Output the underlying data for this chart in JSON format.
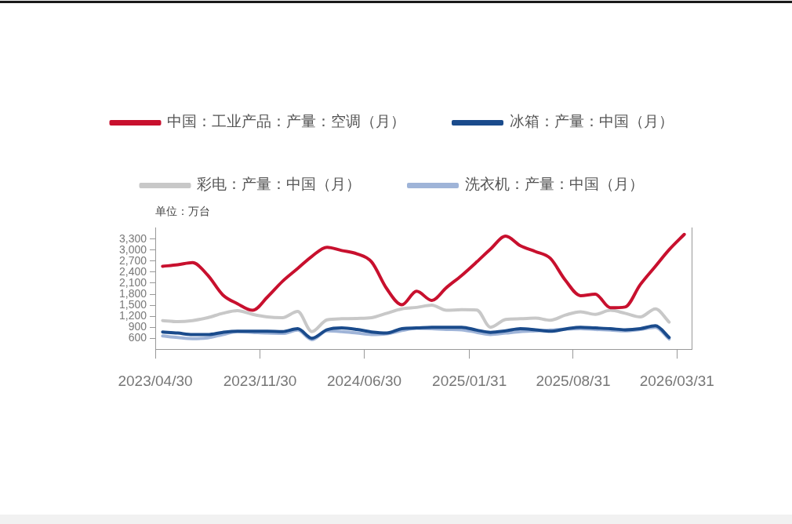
{
  "chart_data": {
    "type": "line",
    "ylabel": "单位：万台",
    "legend": "top",
    "x": [
      "2023-05-15",
      "2023-06-15",
      "2023-07-15",
      "2023-08-15",
      "2023-09-15",
      "2023-10-15",
      "2023-11-15",
      "2023-12-15",
      "2024-01-15",
      "2024-02-15",
      "2024-03-15",
      "2024-04-15",
      "2024-05-15",
      "2024-06-15",
      "2024-07-15",
      "2024-08-15",
      "2024-09-15",
      "2024-10-15",
      "2024-11-15",
      "2024-12-15",
      "2025-01-15",
      "2025-02-15",
      "2025-03-15",
      "2025-04-15",
      "2025-05-15",
      "2025-06-15",
      "2025-07-15",
      "2025-08-15",
      "2025-09-15",
      "2025-10-15",
      "2025-11-15",
      "2025-12-15",
      "2026-01-15",
      "2026-02-15",
      "2026-03-15",
      "2026-04-15"
    ],
    "series": [
      {
        "name": "中国：工业产品：产量：空调（月）",
        "color": "#c8102e",
        "values": [
          2560,
          2600,
          2660,
          2320,
          1780,
          1540,
          1360,
          1720,
          2150,
          2500,
          2830,
          3080,
          2990,
          2900,
          2680,
          1950,
          1510,
          1880,
          1630,
          1980,
          2310,
          2680,
          3030,
          3380,
          3120,
          2960,
          2780,
          2180,
          1760,
          1800,
          1430,
          1450,
          2060,
          2560,
          3010,
          3430
        ]
      },
      {
        "name": "冰箱：产量：中国（月）",
        "color": "#1a4b8c",
        "values": [
          770,
          740,
          700,
          700,
          760,
          790,
          790,
          790,
          780,
          860,
          600,
          830,
          880,
          840,
          770,
          740,
          860,
          880,
          900,
          900,
          900,
          820,
          760,
          800,
          860,
          830,
          790,
          850,
          900,
          880,
          860,
          830,
          860,
          940,
          620,
          null
        ]
      },
      {
        "name": "彩电：产量：中国（月）",
        "color": "#c8c8c8",
        "values": [
          1080,
          1050,
          1080,
          1160,
          1280,
          1350,
          1250,
          1180,
          1160,
          1330,
          780,
          1100,
          1130,
          1140,
          1160,
          1280,
          1400,
          1440,
          1500,
          1360,
          1380,
          1370,
          900,
          1110,
          1130,
          1150,
          1090,
          1230,
          1320,
          1250,
          1360,
          1280,
          1180,
          1400,
          1040,
          null
        ]
      },
      {
        "name": "洗衣机：产量：中国（月）",
        "color": "#9fb4d8",
        "values": [
          660,
          620,
          590,
          610,
          700,
          780,
          760,
          740,
          730,
          820,
          560,
          800,
          780,
          740,
          700,
          720,
          810,
          870,
          860,
          840,
          830,
          760,
          700,
          740,
          780,
          800,
          820,
          850,
          860,
          840,
          820,
          800,
          840,
          900,
          580,
          null
        ]
      }
    ],
    "xlim": [
      "2023-04-30",
      "2026-04-30"
    ],
    "xticks": [
      {
        "value": "2023-04-30",
        "label": "2023/04/30"
      },
      {
        "value": "2023-11-30",
        "label": "2023/11/30"
      },
      {
        "value": "2024-06-30",
        "label": "2024/06/30"
      },
      {
        "value": "2025-01-31",
        "label": "2025/01/31"
      },
      {
        "value": "2025-08-31",
        "label": "2025/08/31"
      },
      {
        "value": "2026-03-31",
        "label": "2026/03/31"
      }
    ],
    "ylim": [
      300,
      3600
    ],
    "yticks": [
      600,
      900,
      {
        "value": 1200,
        "label": "1,200"
      },
      {
        "value": 1500,
        "label": "1,500"
      },
      {
        "value": 1800,
        "label": "1,800"
      },
      {
        "value": 2100,
        "label": "2,100"
      },
      {
        "value": 2400,
        "label": "2,400"
      },
      {
        "value": 2700,
        "label": "2,700"
      },
      {
        "value": 3000,
        "label": "3,000"
      },
      {
        "value": 3300,
        "label": "3,300"
      }
    ]
  }
}
